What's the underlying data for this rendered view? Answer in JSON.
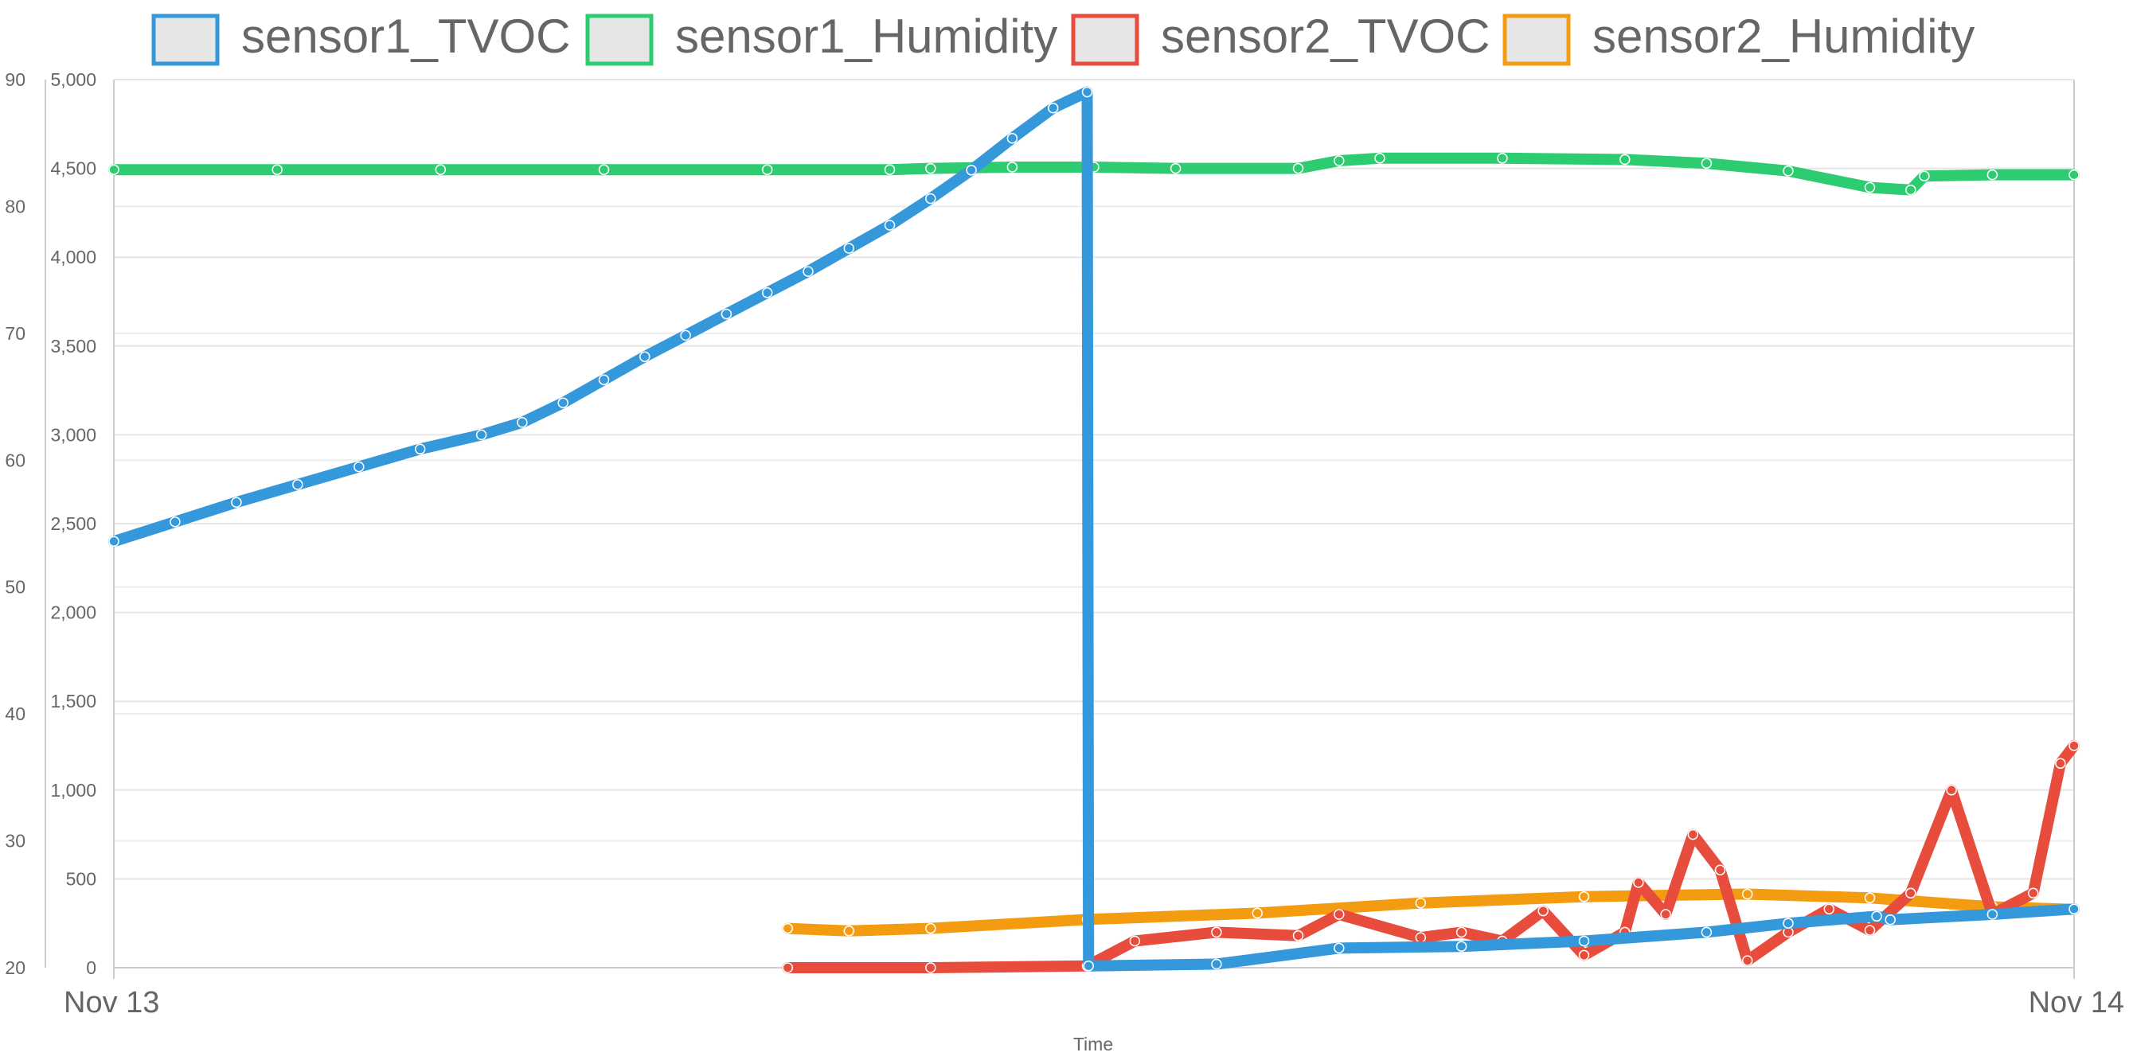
{
  "chart_data": {
    "type": "line",
    "xlabel": "Time",
    "x_ticks": [
      "Nov 13",
      "Nov 14"
    ],
    "x_range": [
      "2023-11-13T00:00",
      "2023-11-14T00:00"
    ],
    "y_left": {
      "ticks": [
        "90",
        "80",
        "70",
        "60",
        "50",
        "40",
        "30",
        "20"
      ],
      "range": [
        20,
        90
      ]
    },
    "y_right": {
      "ticks": [
        "5,000",
        "4,500",
        "4,000",
        "3,500",
        "3,000",
        "2,500",
        "2,000",
        "1,500",
        "1,000",
        "500",
        "0"
      ],
      "range": [
        0,
        5000
      ]
    },
    "legend_position": "top",
    "grid": true,
    "series": [
      {
        "name": "sensor1_TVOC",
        "color": "#3498db",
        "axis": "right",
        "points": [
          [
            "2023-11-13T00:00",
            2400
          ],
          [
            "2023-11-13T00:45",
            2510
          ],
          [
            "2023-11-13T01:30",
            2620
          ],
          [
            "2023-11-13T02:15",
            2720
          ],
          [
            "2023-11-13T03:00",
            2820
          ],
          [
            "2023-11-13T03:45",
            2920
          ],
          [
            "2023-11-13T04:30",
            3000
          ],
          [
            "2023-11-13T05:00",
            3070
          ],
          [
            "2023-11-13T05:30",
            3180
          ],
          [
            "2023-11-13T06:00",
            3310
          ],
          [
            "2023-11-13T06:30",
            3440
          ],
          [
            "2023-11-13T07:00",
            3560
          ],
          [
            "2023-11-13T07:30",
            3680
          ],
          [
            "2023-11-13T08:00",
            3800
          ],
          [
            "2023-11-13T08:30",
            3920
          ],
          [
            "2023-11-13T09:00",
            4050
          ],
          [
            "2023-11-13T09:30",
            4180
          ],
          [
            "2023-11-13T10:00",
            4330
          ],
          [
            "2023-11-13T10:30",
            4490
          ],
          [
            "2023-11-13T11:00",
            4670
          ],
          [
            "2023-11-13T11:30",
            4840
          ],
          [
            "2023-11-13T11:55",
            4930
          ],
          [
            "2023-11-13T11:56",
            10
          ],
          [
            "2023-11-13T13:30",
            20
          ],
          [
            "2023-11-13T15:00",
            110
          ],
          [
            "2023-11-13T16:30",
            120
          ],
          [
            "2023-11-13T18:00",
            150
          ],
          [
            "2023-11-13T19:30",
            200
          ],
          [
            "2023-11-13T20:30",
            250
          ],
          [
            "2023-11-13T21:35",
            290
          ],
          [
            "2023-11-13T21:45",
            270
          ],
          [
            "2023-11-13T23:00",
            300
          ],
          [
            "2023-11-14T00:00",
            330
          ]
        ]
      },
      {
        "name": "sensor1_Humidity",
        "color": "#2ecc71",
        "axis": "left",
        "points": [
          [
            "2023-11-13T00:00",
            82.9
          ],
          [
            "2023-11-13T02:00",
            82.9
          ],
          [
            "2023-11-13T04:00",
            82.9
          ],
          [
            "2023-11-13T06:00",
            82.9
          ],
          [
            "2023-11-13T08:00",
            82.9
          ],
          [
            "2023-11-13T09:30",
            82.9
          ],
          [
            "2023-11-13T10:00",
            83.0
          ],
          [
            "2023-11-13T11:00",
            83.1
          ],
          [
            "2023-11-13T12:00",
            83.1
          ],
          [
            "2023-11-13T13:00",
            83.0
          ],
          [
            "2023-11-13T14:30",
            83.0
          ],
          [
            "2023-11-13T15:00",
            83.6
          ],
          [
            "2023-11-13T15:30",
            83.8
          ],
          [
            "2023-11-13T17:00",
            83.8
          ],
          [
            "2023-11-13T18:30",
            83.7
          ],
          [
            "2023-11-13T19:30",
            83.4
          ],
          [
            "2023-11-13T20:30",
            82.8
          ],
          [
            "2023-11-13T21:30",
            81.5
          ],
          [
            "2023-11-13T22:00",
            81.3
          ],
          [
            "2023-11-13T22:10",
            82.4
          ],
          [
            "2023-11-13T23:00",
            82.5
          ],
          [
            "2023-11-14T00:00",
            82.5
          ]
        ]
      },
      {
        "name": "sensor2_TVOC",
        "color": "#e74c3c",
        "axis": "right",
        "points": [
          [
            "2023-11-13T08:15",
            0
          ],
          [
            "2023-11-13T10:00",
            0
          ],
          [
            "2023-11-13T11:55",
            10
          ],
          [
            "2023-11-13T12:30",
            150
          ],
          [
            "2023-11-13T13:30",
            200
          ],
          [
            "2023-11-13T14:30",
            180
          ],
          [
            "2023-11-13T15:00",
            300
          ],
          [
            "2023-11-13T16:00",
            170
          ],
          [
            "2023-11-13T16:30",
            200
          ],
          [
            "2023-11-13T17:00",
            150
          ],
          [
            "2023-11-13T17:30",
            320
          ],
          [
            "2023-11-13T18:00",
            70
          ],
          [
            "2023-11-13T18:30",
            200
          ],
          [
            "2023-11-13T18:40",
            480
          ],
          [
            "2023-11-13T19:00",
            300
          ],
          [
            "2023-11-13T19:20",
            750
          ],
          [
            "2023-11-13T19:40",
            550
          ],
          [
            "2023-11-13T20:00",
            40
          ],
          [
            "2023-11-13T20:30",
            200
          ],
          [
            "2023-11-13T21:00",
            330
          ],
          [
            "2023-11-13T21:30",
            210
          ],
          [
            "2023-11-13T22:00",
            420
          ],
          [
            "2023-11-13T22:30",
            1000
          ],
          [
            "2023-11-13T23:00",
            300
          ],
          [
            "2023-11-13T23:30",
            420
          ],
          [
            "2023-11-13T23:50",
            1150
          ],
          [
            "2023-11-14T00:00",
            1250
          ]
        ]
      },
      {
        "name": "sensor2_Humidity",
        "color": "#f39c12",
        "axis": "left",
        "points": [
          [
            "2023-11-13T08:15",
            23.1
          ],
          [
            "2023-11-13T09:00",
            22.9
          ],
          [
            "2023-11-13T10:00",
            23.1
          ],
          [
            "2023-11-13T11:55",
            23.8
          ],
          [
            "2023-11-13T14:00",
            24.3
          ],
          [
            "2023-11-13T16:00",
            25.1
          ],
          [
            "2023-11-13T18:00",
            25.6
          ],
          [
            "2023-11-13T20:00",
            25.8
          ],
          [
            "2023-11-13T21:30",
            25.5
          ],
          [
            "2023-11-13T23:00",
            24.8
          ],
          [
            "2023-11-14T00:00",
            24.6
          ]
        ]
      }
    ]
  }
}
